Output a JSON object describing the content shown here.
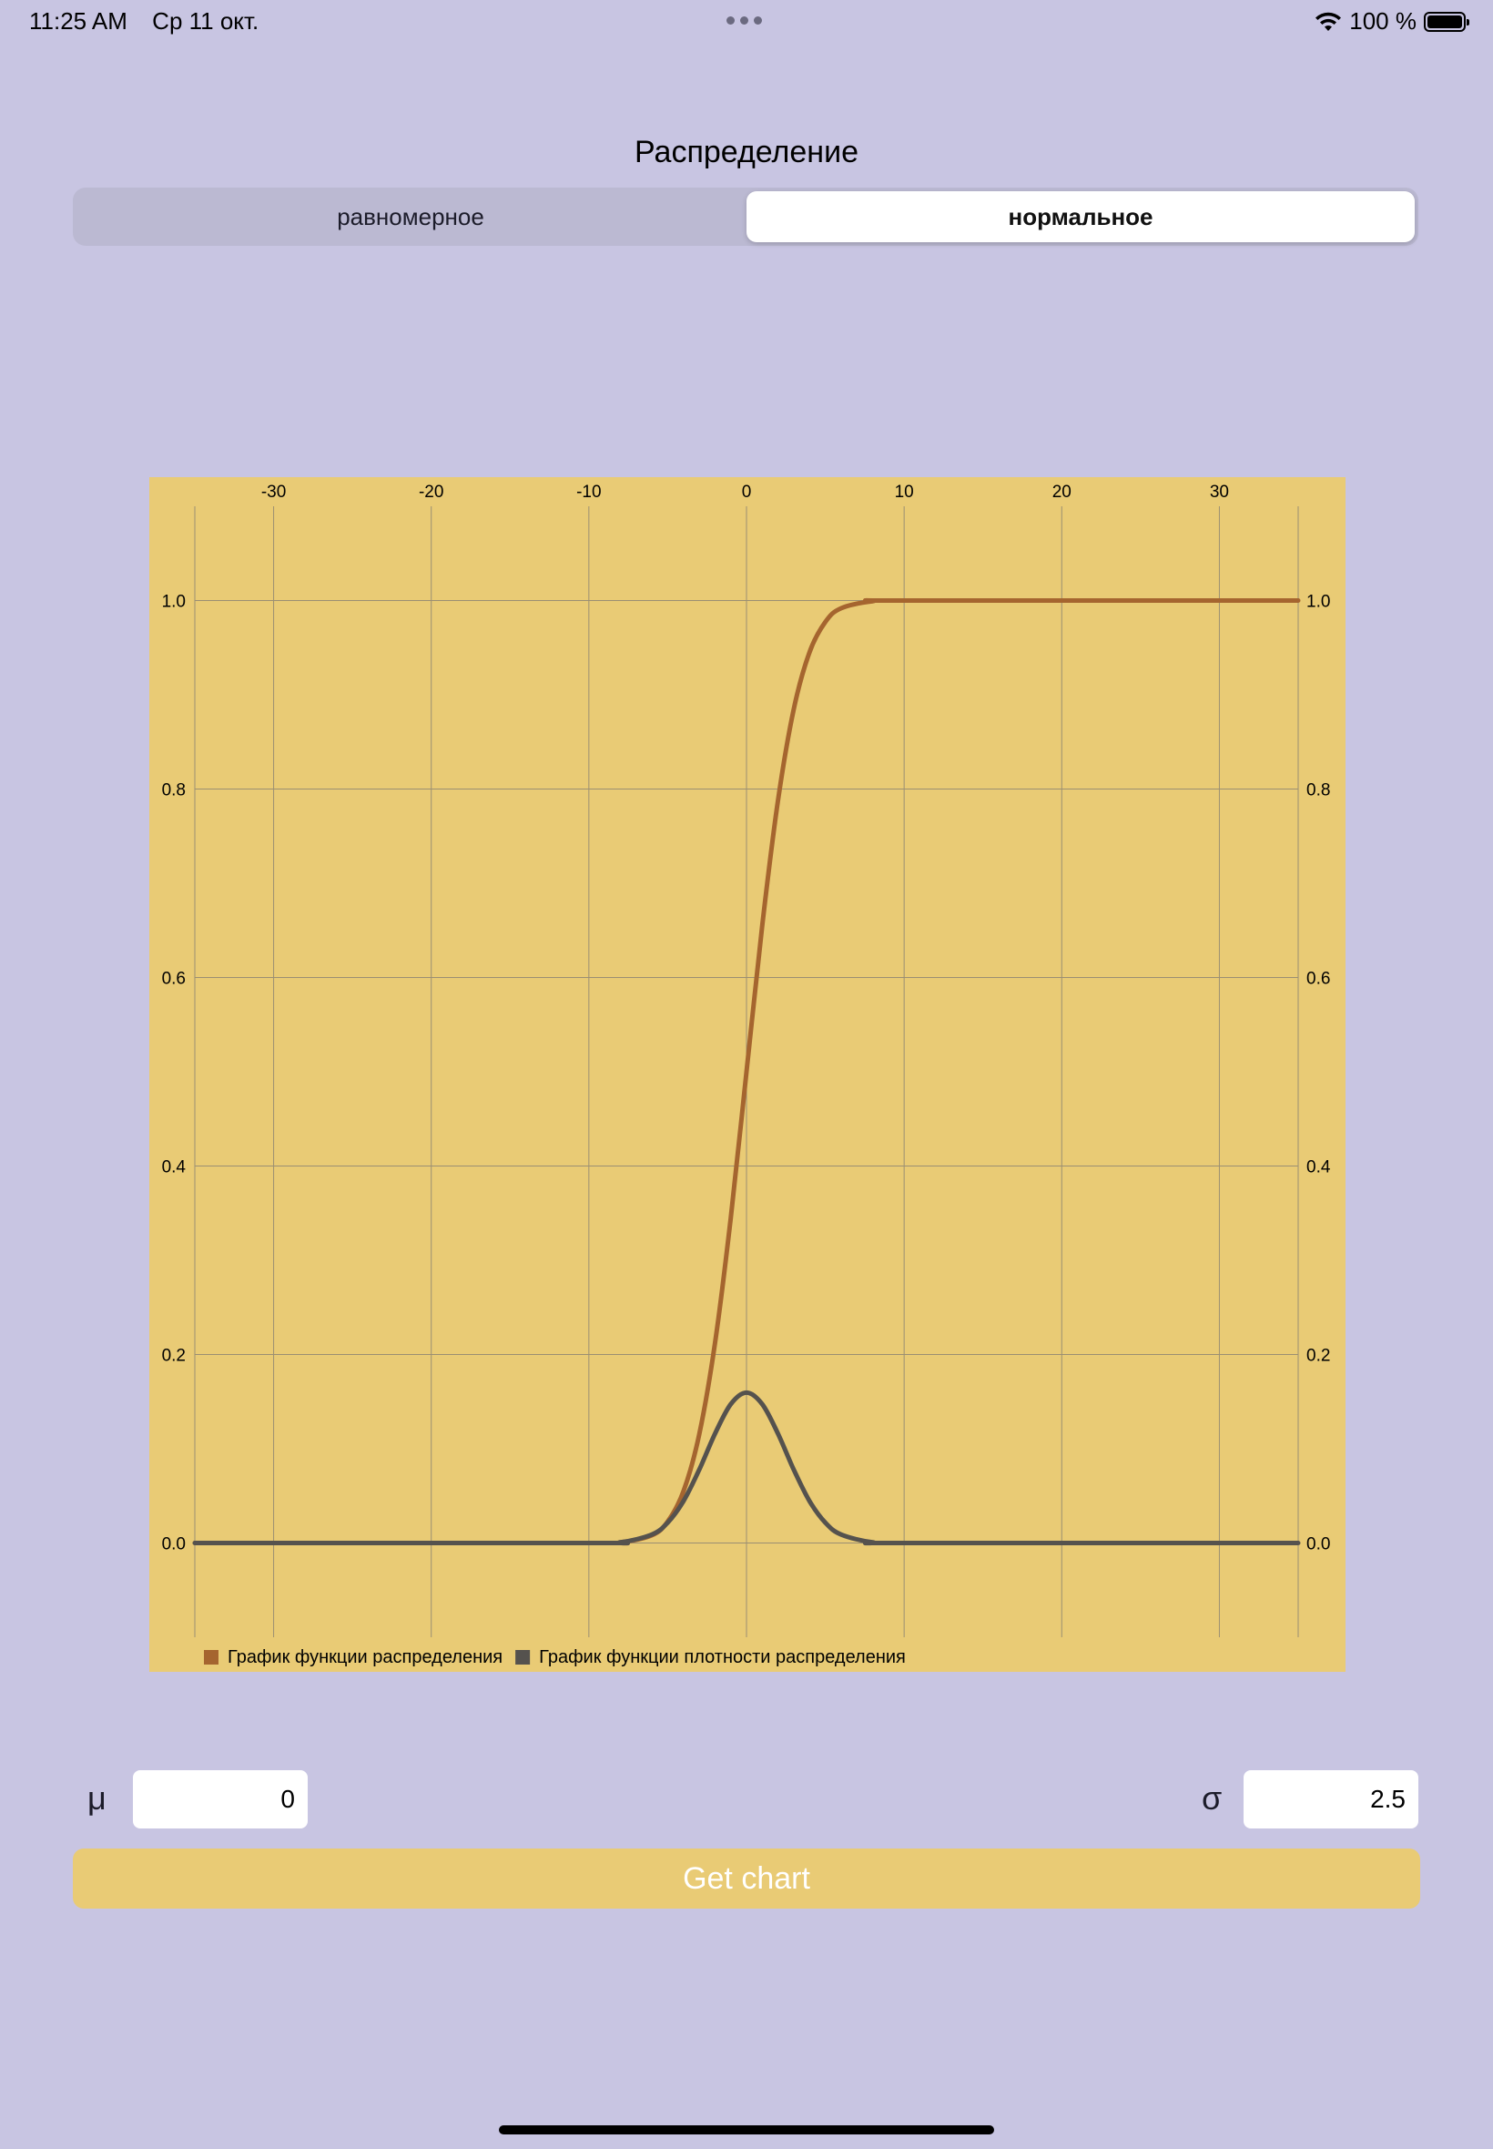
{
  "status_bar": {
    "time": "11:25 AM",
    "date": "Ср 11 окт.",
    "battery": "100 %"
  },
  "title": "Распределение",
  "segments": {
    "uniform": "равномерное",
    "normal": "нормальное",
    "selected": "normal"
  },
  "chart_data": {
    "type": "line",
    "title": "",
    "xlabel": "",
    "ylabel": "",
    "xlim": [
      -35,
      35
    ],
    "ylim": [
      -0.1,
      1.1
    ],
    "x_ticks": [
      -30,
      -20,
      -10,
      0,
      10,
      20,
      30
    ],
    "y_ticks": [
      0.0,
      0.2,
      0.4,
      0.6,
      0.8,
      1.0
    ],
    "grid": true,
    "legend_position": "bottom-left",
    "background": "#e9cb75",
    "series": [
      {
        "name": "График функции распределения",
        "color": "#a5652f",
        "x": [
          -35,
          -10,
          -8,
          -6,
          -5,
          -4,
          -3,
          -2,
          -1,
          0,
          1,
          2,
          3,
          4,
          5,
          6,
          8,
          10,
          35
        ],
        "values": [
          0.0,
          0.0,
          0.0007,
          0.0082,
          0.0228,
          0.0548,
          0.1151,
          0.2119,
          0.3446,
          0.5,
          0.6554,
          0.7881,
          0.8849,
          0.9452,
          0.9772,
          0.9918,
          0.9993,
          1.0,
          1.0
        ]
      },
      {
        "name": "График функции плотности распределения",
        "color": "#55524e",
        "x": [
          -35,
          -10,
          -8,
          -6,
          -5,
          -4,
          -3,
          -2,
          -1,
          0,
          1,
          2,
          3,
          4,
          5,
          6,
          8,
          10,
          35
        ],
        "values": [
          0.0,
          0.0,
          0.0007,
          0.009,
          0.0216,
          0.0444,
          0.0777,
          0.1159,
          0.1473,
          0.1596,
          0.1473,
          0.1159,
          0.0777,
          0.0444,
          0.0216,
          0.009,
          0.0007,
          0.0,
          0.0
        ]
      }
    ]
  },
  "params": {
    "mu_label": "μ",
    "mu_value": "0",
    "sigma_label": "σ",
    "sigma_value": "2.5"
  },
  "button": {
    "get_chart": "Get chart"
  }
}
